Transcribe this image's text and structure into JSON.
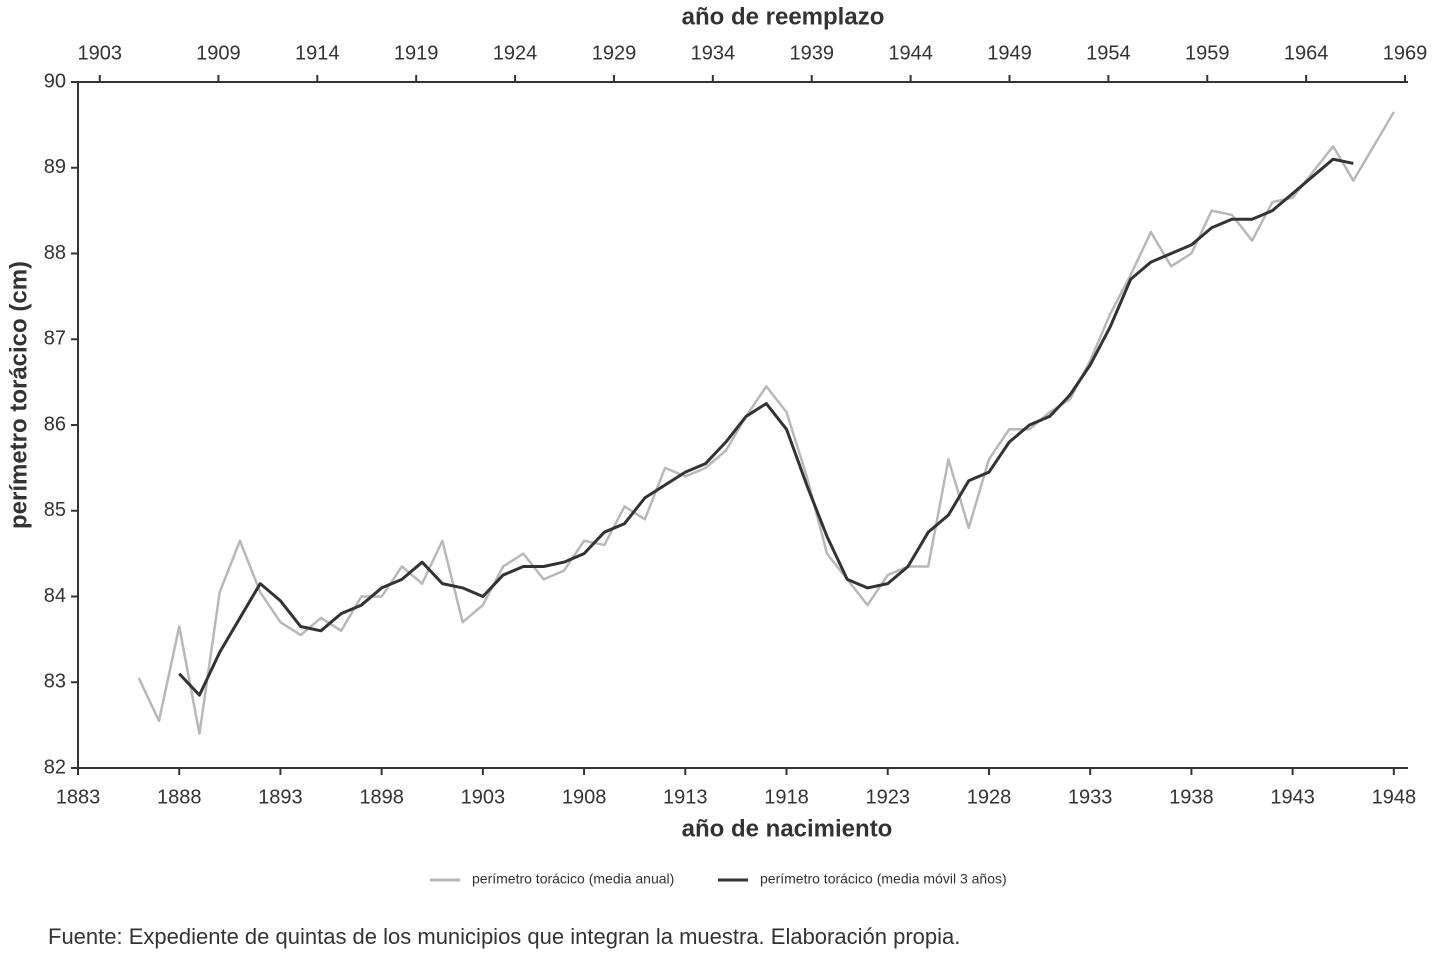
{
  "chart_data": {
    "type": "line",
    "title": "año de reemplazo",
    "x_label": "año de nacimiento",
    "y_label": "perímetro torácico (cm)",
    "source": "Fuente: Expediente de quintas de los municipios que integran la muestra. Elaboración propia.",
    "xlim": [
      1883,
      1948.7
    ],
    "xticks": [
      1883,
      1888,
      1893,
      1898,
      1903,
      1908,
      1913,
      1918,
      1923,
      1928,
      1933,
      1938,
      1943,
      1948
    ],
    "x2lim": [
      1901.9,
      1969.15
    ],
    "x2ticks": [
      1903,
      1909,
      1914,
      1919,
      1924,
      1929,
      1934,
      1939,
      1944,
      1949,
      1954,
      1959,
      1964,
      1969
    ],
    "ylim": [
      82,
      90
    ],
    "yticks": [
      82,
      83,
      84,
      85,
      86,
      87,
      88,
      89,
      90
    ],
    "series": [
      {
        "name": "perímetro torácico (media anual)",
        "color": "#b8b8b8",
        "x": [
          1886,
          1887,
          1888,
          1889,
          1890,
          1891,
          1892,
          1893,
          1894,
          1895,
          1896,
          1897,
          1898,
          1899,
          1900,
          1901,
          1902,
          1903,
          1904,
          1905,
          1906,
          1907,
          1908,
          1909,
          1910,
          1911,
          1912,
          1913,
          1914,
          1915,
          1916,
          1917,
          1918,
          1919,
          1920,
          1921,
          1922,
          1923,
          1924,
          1925,
          1926,
          1927,
          1928,
          1929,
          1930,
          1931,
          1932,
          1933,
          1934,
          1935,
          1936,
          1937,
          1938,
          1939,
          1940,
          1941,
          1942,
          1943,
          1944,
          1945,
          1946,
          1947,
          1948
        ],
        "values": [
          83.05,
          82.55,
          83.65,
          82.4,
          84.05,
          84.65,
          84.05,
          83.7,
          83.55,
          83.75,
          83.6,
          84.0,
          84.0,
          84.35,
          84.15,
          84.65,
          83.7,
          83.9,
          84.35,
          84.5,
          84.2,
          84.3,
          84.65,
          84.6,
          85.05,
          84.9,
          85.5,
          85.4,
          85.5,
          85.7,
          86.1,
          86.45,
          86.15,
          85.4,
          84.5,
          84.2,
          83.9,
          84.25,
          84.35,
          84.35,
          85.6,
          84.8,
          85.6,
          85.95,
          85.95,
          86.15,
          86.3,
          86.75,
          87.3,
          87.75,
          88.25,
          87.85,
          88.0,
          88.5,
          88.45,
          88.15,
          88.6,
          88.65,
          88.95,
          89.25,
          88.85,
          89.25,
          89.65
        ]
      },
      {
        "name": "perímetro torácico (media móvil 3 años)",
        "color": "#333333",
        "x": [
          1888,
          1889,
          1890,
          1891,
          1892,
          1893,
          1894,
          1895,
          1896,
          1897,
          1898,
          1899,
          1900,
          1901,
          1902,
          1903,
          1904,
          1905,
          1906,
          1907,
          1908,
          1909,
          1910,
          1911,
          1912,
          1913,
          1914,
          1915,
          1916,
          1917,
          1918,
          1919,
          1920,
          1921,
          1922,
          1923,
          1924,
          1925,
          1926,
          1927,
          1928,
          1929,
          1930,
          1931,
          1932,
          1933,
          1934,
          1935,
          1936,
          1937,
          1938,
          1939,
          1940,
          1941,
          1942,
          1943,
          1944,
          1945,
          1946
        ],
        "values": [
          83.1,
          82.85,
          83.35,
          83.75,
          84.15,
          83.95,
          83.65,
          83.6,
          83.8,
          83.9,
          84.1,
          84.2,
          84.4,
          84.15,
          84.1,
          84.0,
          84.25,
          84.35,
          84.35,
          84.4,
          84.5,
          84.75,
          84.85,
          85.15,
          85.3,
          85.45,
          85.55,
          85.8,
          86.1,
          86.25,
          85.95,
          85.3,
          84.7,
          84.2,
          84.1,
          84.15,
          84.35,
          84.75,
          84.95,
          85.35,
          85.45,
          85.8,
          86.0,
          86.1,
          86.35,
          86.7,
          87.15,
          87.7,
          87.9,
          88.0,
          88.1,
          88.3,
          88.4,
          88.4,
          88.5,
          88.7,
          88.9,
          89.1,
          89.05
        ]
      }
    ]
  }
}
